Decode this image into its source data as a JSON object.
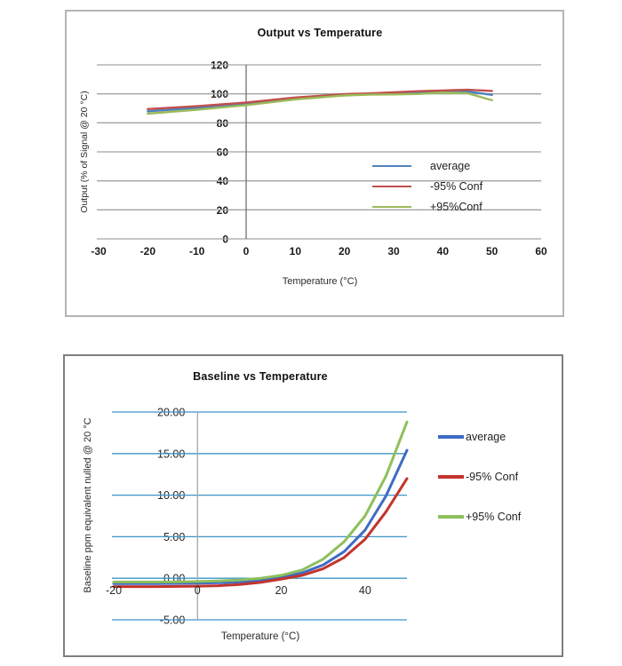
{
  "chart_data": [
    {
      "type": "line",
      "title": "Output vs Temperature",
      "xlabel": "Temperature (°C)",
      "ylabel": "Output (% of Signal @ 20 °C)",
      "xlim": [
        -30,
        60
      ],
      "ylim": [
        0,
        120
      ],
      "x_ticks": {
        "values": [
          -30,
          -20,
          -10,
          0,
          10,
          20,
          30,
          40,
          50,
          60
        ],
        "labels": [
          "-30",
          "-20",
          "-10",
          "0",
          "10",
          "20",
          "30",
          "40",
          "50",
          "60"
        ]
      },
      "y_ticks": {
        "values": [
          0,
          20,
          40,
          60,
          80,
          100,
          120
        ],
        "labels": [
          "0",
          "20",
          "40",
          "60",
          "80",
          "100",
          "120"
        ]
      },
      "axis_cross_x": 0,
      "grid_color": "#a3a3a3",
      "axis_color": "#737373",
      "line_width": 2.4,
      "grid_on": true,
      "legend_position": "inside-right",
      "x": [
        -20,
        -10,
        0,
        10,
        20,
        25,
        30,
        35,
        40,
        45,
        50
      ],
      "series": [
        {
          "name": "average",
          "color": "#4f81bd",
          "values": [
            88.0,
            90.3,
            93.0,
            96.8,
            99.2,
            99.7,
            100.2,
            100.6,
            101.4,
            101.6,
            99.3
          ]
        },
        {
          "name": "-95% Conf",
          "color": "#c0504d",
          "values": [
            89.5,
            91.5,
            94.0,
            97.5,
            99.8,
            100.3,
            101.0,
            101.8,
            102.3,
            102.8,
            102.0
          ]
        },
        {
          "name": "+95%Conf",
          "color": "#9bbb59",
          "values": [
            86.3,
            89.0,
            92.2,
            96.2,
            98.9,
            99.4,
            99.6,
            99.9,
            100.9,
            100.4,
            95.6
          ]
        }
      ]
    },
    {
      "type": "line",
      "title": "Baseline vs Temperature",
      "xlabel": "Temperature (°C)",
      "ylabel": "Baseline ppm equivalent nulled @ 20 °C",
      "xlim": [
        -20,
        50
      ],
      "ylim": [
        -5,
        20
      ],
      "x_ticks": {
        "values": [
          -20,
          0,
          20,
          40
        ],
        "labels": [
          "-20",
          "0",
          "20",
          "40"
        ]
      },
      "y_ticks": {
        "values": [
          -5,
          0,
          5,
          10,
          15,
          20
        ],
        "labels": [
          "-5.00",
          "0.00",
          "5.00",
          "10.00",
          "15.00",
          "20.00"
        ]
      },
      "axis_cross_x": 0,
      "grid_color": "#3e95c6",
      "axis_color": "#a6a6a6",
      "line_width": 3,
      "grid_on": true,
      "legend_position": "right",
      "x": [
        -20,
        -15,
        -10,
        -5,
        0,
        5,
        10,
        15,
        20,
        25,
        30,
        35,
        40,
        45,
        50
      ],
      "series": [
        {
          "name": "average",
          "color": "#3f6bc4",
          "values": [
            -0.65,
            -0.65,
            -0.65,
            -0.62,
            -0.6,
            -0.55,
            -0.45,
            -0.25,
            0.1,
            0.65,
            1.6,
            3.2,
            5.8,
            9.9,
            15.4
          ]
        },
        {
          "name": "-95% Conf",
          "color": "#c2342c",
          "values": [
            -1.0,
            -1.0,
            -1.0,
            -0.98,
            -0.95,
            -0.9,
            -0.75,
            -0.5,
            -0.1,
            0.35,
            1.15,
            2.5,
            4.7,
            8.0,
            12.0
          ]
        },
        {
          "name": "+95% Conf",
          "color": "#8dc05c",
          "values": [
            -0.45,
            -0.45,
            -0.45,
            -0.43,
            -0.4,
            -0.32,
            -0.2,
            0.0,
            0.35,
            1.0,
            2.3,
            4.4,
            7.5,
            12.3,
            18.8
          ]
        }
      ]
    }
  ]
}
